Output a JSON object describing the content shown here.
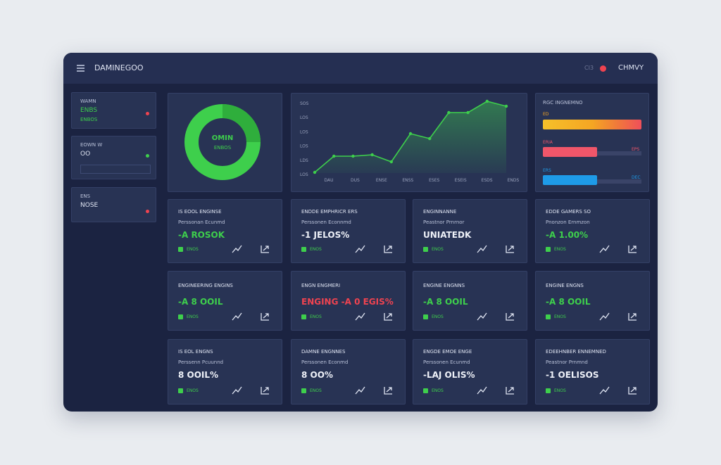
{
  "header": {
    "title": "DAMINEGOO",
    "badge": "CI3",
    "user": "CHMVY"
  },
  "sidebar": [
    {
      "label": "WAMN",
      "value": "ENBS",
      "sub": "ENBOS"
    },
    {
      "label": "EOWN W",
      "value": "OO"
    },
    {
      "label": "ENS",
      "value": "NOSE"
    }
  ],
  "donut": {
    "label": "OMIN",
    "sub": "ENBOS"
  },
  "line_chart": {
    "yticks": [
      "SOS",
      "LOS",
      "LOS",
      "LOS",
      "LDS",
      "LOS"
    ],
    "xticks": [
      "DAU",
      "DUS",
      "ENSE",
      "ENSS",
      "ESES",
      "ESEIS",
      "ESDS",
      "ENDS"
    ],
    "values": [
      1,
      24,
      24,
      26,
      16,
      56,
      49,
      86,
      86,
      102,
      95
    ],
    "ylim": [
      0,
      105
    ],
    "color": "#3ecf4c"
  },
  "bars": {
    "title": "RGC INGNEMNO",
    "xlim": [
      0,
      100
    ],
    "items": [
      {
        "label": "ED",
        "value": 100,
        "color": "#f5a623"
      },
      {
        "label": "ERIA",
        "right": "EPS",
        "value": 55,
        "color": "#f0566a"
      },
      {
        "label": "ERS",
        "right": "DEC",
        "value": 55,
        "color": "#1e9be8"
      }
    ]
  },
  "cards": [
    {
      "title": "IS EOOL ENGINSE",
      "sub": "Perssonan Ecunmd",
      "value": "-A ROSOK",
      "status": "green",
      "foot": "ENOS"
    },
    {
      "title": "ENDDE EMPHRICR ERS",
      "sub": "Perssonen Econnmd",
      "value": "-1 JELOS%",
      "status": "white",
      "foot": "ENOS"
    },
    {
      "title": "ENGINNANNE",
      "sub": "Peastnor Prnrnor",
      "value": "UNIATEDK",
      "status": "white",
      "foot": "ENOS"
    },
    {
      "title": "EDDE GAMERS SO",
      "sub": "Pnonzon Ernmzon",
      "value": "-A 1.00%",
      "status": "green",
      "foot": "ENOS"
    },
    {
      "title": "ENGINEERING ENGINS",
      "value": "-A 8 OOIL",
      "status": "green",
      "foot": "ENOS"
    },
    {
      "title": "ENGN ENGMERI",
      "value": "ENGING -A 0 EGIS%",
      "status": "red",
      "foot": "ENOS"
    },
    {
      "title": "ENGINE ENGNNS",
      "value": "-A 8 OOIL",
      "status": "green",
      "foot": "ENOS"
    },
    {
      "title": "ENGINE ENGNS",
      "value": "-A 8 OOIL",
      "status": "green",
      "foot": "ENOS"
    },
    {
      "title": "IS EOL ENGNS",
      "sub": "Perssenn Pcuunnd",
      "value": "8 OOIL%",
      "status": "white",
      "foot": "ENOS"
    },
    {
      "title": "DAMNE ENGNNES",
      "sub": "Perssonen Econmd",
      "value": "8 OO%",
      "status": "white",
      "foot": "ENOS"
    },
    {
      "title": "ENGDE EMOE ENGE",
      "sub": "Perssonen Ecunmd",
      "value": "-LAJ OLIS%",
      "status": "white",
      "foot": "ENOS"
    },
    {
      "title": "EDEEHNBER ENNEMNED",
      "sub": "Peastnor Prnmnd",
      "value": "-1 OELISOS",
      "status": "white",
      "foot": "ENOS"
    }
  ]
}
